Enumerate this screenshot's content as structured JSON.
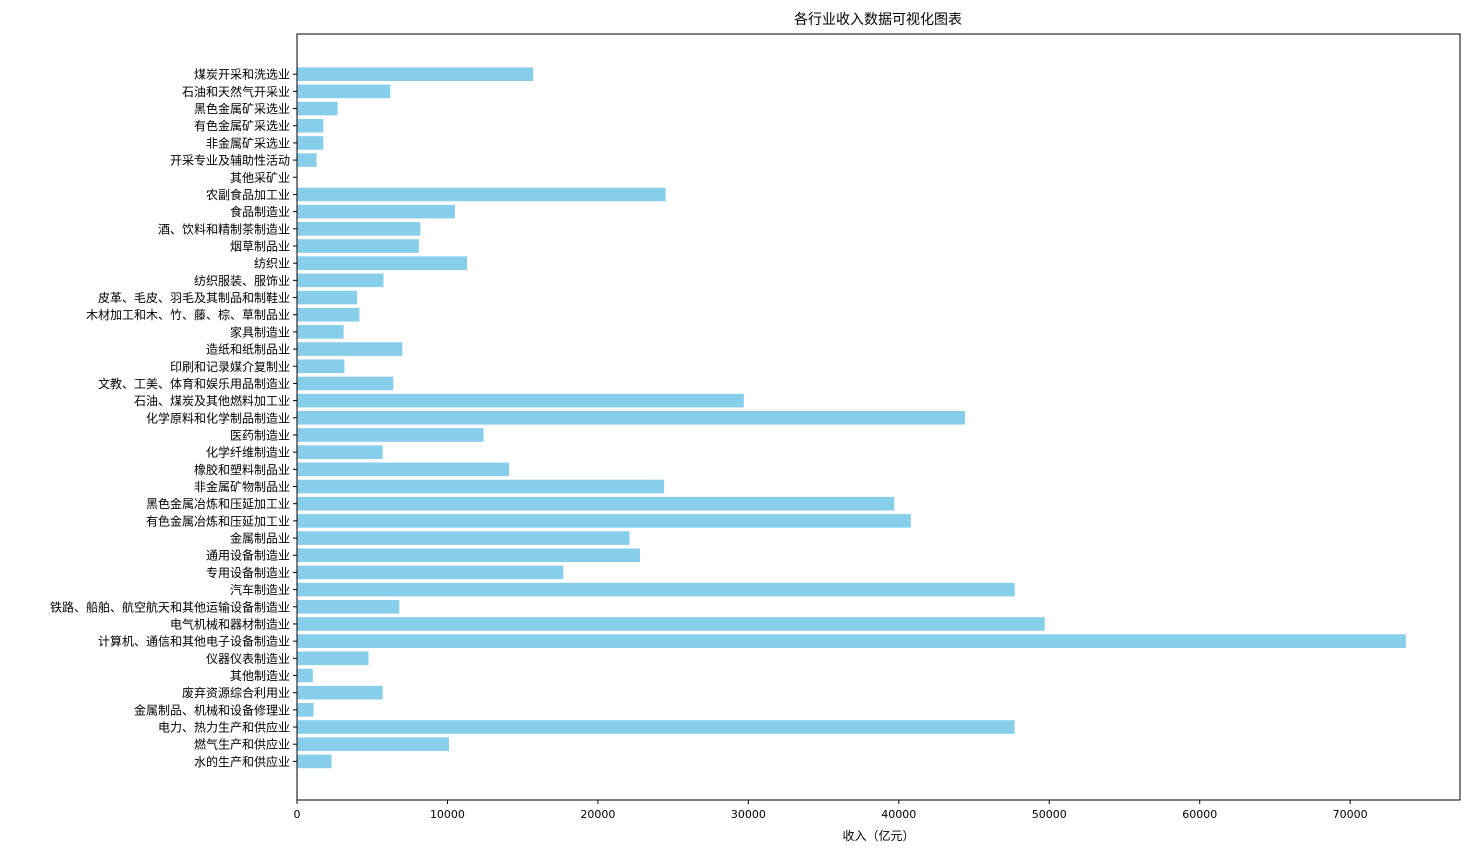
{
  "chart_data": {
    "type": "bar",
    "orientation": "horizontal",
    "title": "各行业收入数据可视化图表",
    "xlabel": "收入（亿元）",
    "ylabel": "",
    "xlim": [
      0,
      77300
    ],
    "xticks": [
      0,
      10000,
      20000,
      30000,
      40000,
      50000,
      60000,
      70000
    ],
    "xtick_labels": [
      "0",
      "10000",
      "20000",
      "30000",
      "40000",
      "50000",
      "60000",
      "70000"
    ],
    "bar_color": "#87CEEB",
    "grid": false,
    "categories": [
      "煤炭开采和洗选业",
      "石油和天然气开采业",
      "黑色金属矿采选业",
      "有色金属矿采选业",
      "非金属矿采选业",
      "开采专业及辅助性活动",
      "其他采矿业",
      "农副食品加工业",
      "食品制造业",
      "酒、饮料和精制茶制造业",
      "烟草制品业",
      "纺织业",
      "纺织服装、服饰业",
      "皮革、毛皮、羽毛及其制品和制鞋业",
      "木材加工和木、竹、藤、棕、草制品业",
      "家具制造业",
      "造纸和纸制品业",
      "印刷和记录媒介复制业",
      "文教、工美、体育和娱乐用品制造业",
      "石油、煤炭及其他燃料加工业",
      "化学原料和化学制品制造业",
      "医药制造业",
      "化学纤维制造业",
      "橡胶和塑料制品业",
      "非金属矿物制品业",
      "黑色金属冶炼和压延加工业",
      "有色金属冶炼和压延加工业",
      "金属制品业",
      "通用设备制造业",
      "专用设备制造业",
      "汽车制造业",
      "铁路、船舶、航空航天和其他运输设备制造业",
      "电气机械和器材制造业",
      "计算机、通信和其他电子设备制造业",
      "仪器仪表制造业",
      "其他制造业",
      "废弃资源综合利用业",
      "金属制品、机械和设备修理业",
      "电力、热力生产和供应业",
      "燃气生产和供应业",
      "水的生产和供应业"
    ],
    "values": [
      15700,
      6200,
      2700,
      1750,
      1750,
      1300,
      40,
      24500,
      10500,
      8200,
      8100,
      11300,
      5750,
      4000,
      4150,
      3100,
      7000,
      3150,
      6400,
      29700,
      44400,
      12400,
      5700,
      14100,
      24400,
      39700,
      40800,
      22100,
      22800,
      17700,
      47700,
      6800,
      49700,
      73700,
      4750,
      1050,
      5700,
      1100,
      47700,
      10100,
      2300
    ]
  }
}
